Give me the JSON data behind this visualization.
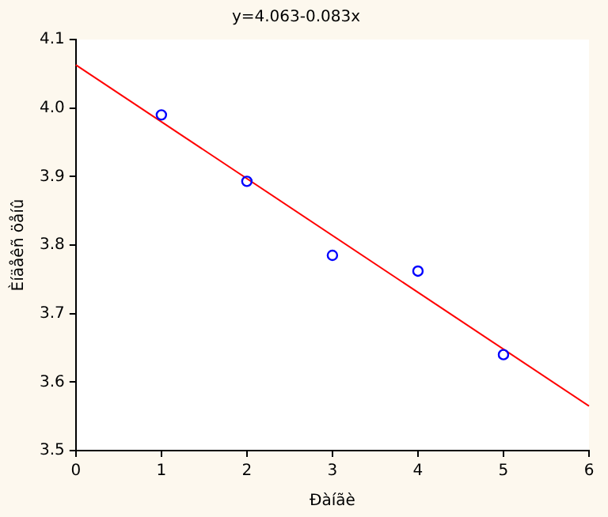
{
  "chart_data": {
    "type": "scatter",
    "title": "y=4.063-0.083x",
    "xlabel": "Ðàíãè",
    "ylabel": "Èíäåêñ öåíû",
    "series": [
      {
        "type": "scatter",
        "color": "#0000ff",
        "x": [
          1,
          2,
          3,
          4,
          5
        ],
        "values": [
          3.99,
          3.893,
          3.785,
          3.762,
          3.64
        ],
        "marker": "circle"
      },
      {
        "type": "line",
        "color": "#ff0000",
        "x": [
          0,
          6
        ],
        "values": [
          4.063,
          3.565
        ],
        "marker": "none"
      }
    ],
    "xlim": [
      0,
      6
    ],
    "xticks": [
      0,
      1,
      2,
      3,
      4,
      5,
      6
    ],
    "ylim": [
      3.5,
      4.1
    ],
    "yticks": [
      {
        "value": 3.5,
        "label": "3.5"
      },
      {
        "value": 3.6,
        "label": "3.6"
      },
      {
        "value": 3.7,
        "label": "3.7"
      },
      {
        "value": 3.8,
        "label": "3.8"
      },
      {
        "value": 3.9,
        "label": "3.9"
      },
      {
        "value": 4.0,
        "label": "4.0"
      },
      {
        "value": 4.1,
        "label": "4.1"
      }
    ],
    "grid": false,
    "legend": false
  }
}
